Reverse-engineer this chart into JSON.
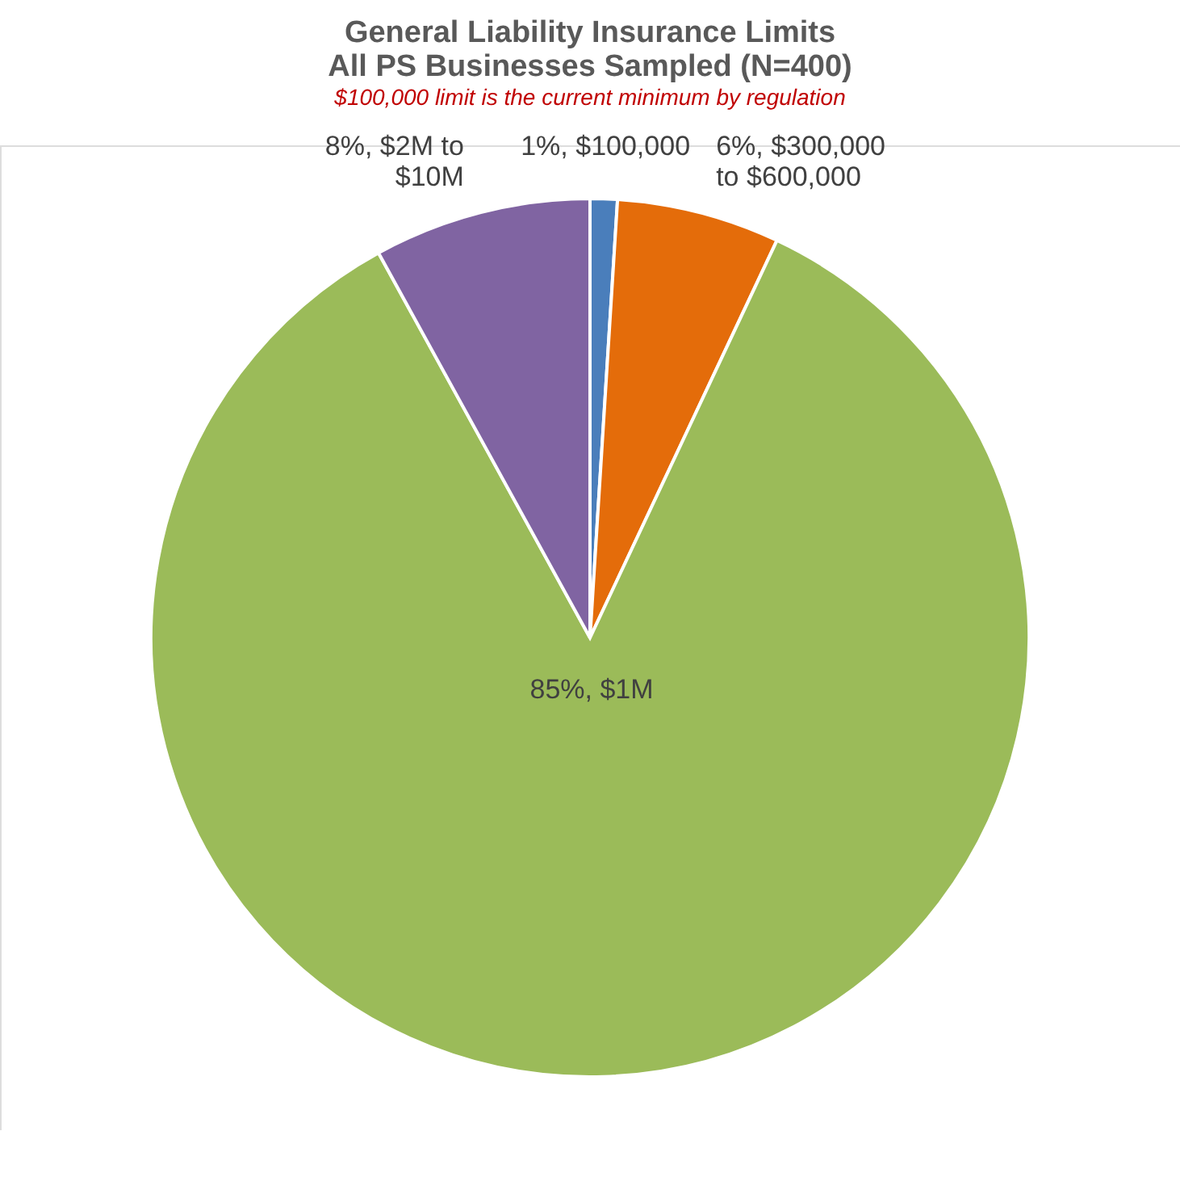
{
  "chart_data": {
    "type": "pie",
    "title": "General Liability Insurance Limits\nAll PS Businesses Sampled (N=400)",
    "subtitle": "$100,000 limit is the current minimum by regulation",
    "categories": [
      "$100,000",
      "$300,000 to $600,000",
      "$1M",
      "$2M to $10M"
    ],
    "values": [
      1,
      6,
      85,
      8
    ],
    "colors": [
      "#4a7ebb",
      "#e46c0a",
      "#9bbb59",
      "#8064a2"
    ],
    "value_labels": [
      "1%,",
      "6%,",
      "85%,",
      "8%,"
    ],
    "legend": false
  }
}
